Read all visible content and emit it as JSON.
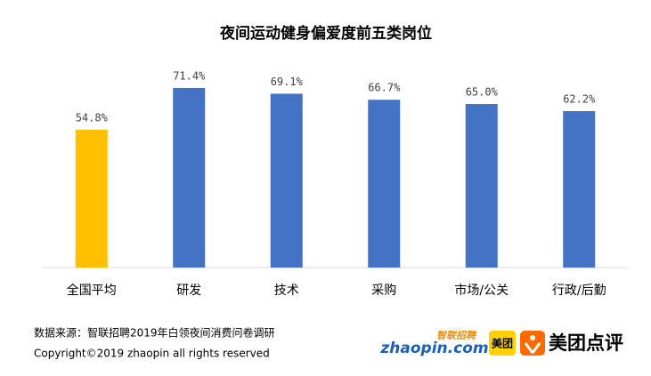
{
  "chart_data": {
    "type": "bar",
    "title": "夜间运动健身偏爱度前五类岗位",
    "categories": [
      "全国平均",
      "研发",
      "技术",
      "采购",
      "市场/公关",
      "行政/后勤"
    ],
    "values": [
      54.8,
      71.4,
      69.1,
      66.7,
      65.0,
      62.2
    ],
    "value_labels": [
      "54.8%",
      "71.4%",
      "69.1%",
      "66.7%",
      "65.0%",
      "62.2%"
    ],
    "colors": [
      "#ffc000",
      "#4472c4",
      "#4472c4",
      "#4472c4",
      "#4472c4",
      "#4472c4"
    ]
  },
  "footer": {
    "source": "数据来源：智联招聘2019年白领夜间消费问卷调研",
    "copyright": "Copyright©2019  zhaopin  all  rights  reserved",
    "logos": {
      "zhaopin_cn": "智联招聘",
      "zhaopin": "zhaopin.com",
      "meituan": "美团",
      "dianping": "美团点评"
    }
  }
}
